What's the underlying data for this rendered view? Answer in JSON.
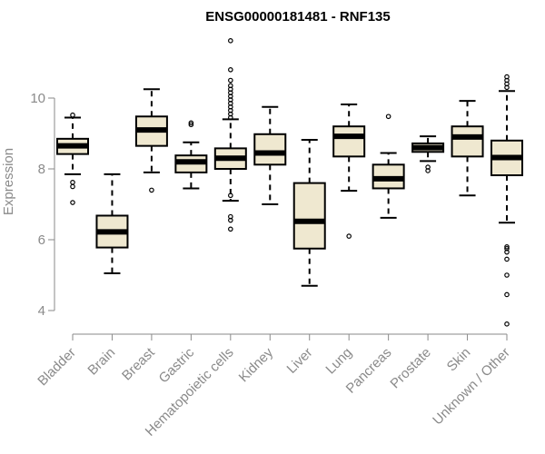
{
  "chart_data": {
    "type": "box",
    "title": "ENSG00000181481 - RNF135",
    "ylabel": "Expression",
    "ylim": [
      3.4,
      12.0
    ],
    "yticks": [
      4,
      6,
      8,
      10
    ],
    "grid": false,
    "colors": {
      "box_fill": "#efe8d0",
      "box_stroke": "#000000",
      "axis": "#8a8a8a"
    },
    "categories": [
      "Bladder",
      "Brain",
      "Breast",
      "Gastric",
      "Hematopoietic cells",
      "Kidney",
      "Liver",
      "Lung",
      "Pancreas",
      "Prostate",
      "Skin",
      "Unknown / Other"
    ],
    "boxes": [
      {
        "category": "Bladder",
        "whisker_low": 7.85,
        "q1": 8.42,
        "median": 8.65,
        "q3": 8.85,
        "whisker_high": 9.45,
        "outliers": [
          9.52,
          7.62,
          7.5,
          7.05
        ]
      },
      {
        "category": "Brain",
        "whisker_low": 5.05,
        "q1": 5.78,
        "median": 6.22,
        "q3": 6.68,
        "whisker_high": 7.85,
        "outliers": []
      },
      {
        "category": "Breast",
        "whisker_low": 7.9,
        "q1": 8.65,
        "median": 9.1,
        "q3": 9.48,
        "whisker_high": 10.25,
        "outliers": [
          7.4
        ]
      },
      {
        "category": "Gastric",
        "whisker_low": 7.45,
        "q1": 7.9,
        "median": 8.2,
        "q3": 8.38,
        "whisker_high": 8.75,
        "outliers": [
          9.3,
          9.25
        ]
      },
      {
        "category": "Hematopoietic cells",
        "whisker_low": 7.1,
        "q1": 8.0,
        "median": 8.3,
        "q3": 8.58,
        "whisker_high": 9.4,
        "outliers": [
          11.62,
          10.8,
          10.5,
          10.35,
          10.25,
          10.15,
          10.05,
          9.95,
          9.85,
          9.75,
          9.65,
          9.55,
          9.45,
          7.25,
          6.65,
          6.55,
          6.3
        ]
      },
      {
        "category": "Kidney",
        "whisker_low": 7.0,
        "q1": 8.12,
        "median": 8.45,
        "q3": 8.98,
        "whisker_high": 9.75,
        "outliers": []
      },
      {
        "category": "Liver",
        "whisker_low": 4.7,
        "q1": 5.75,
        "median": 6.52,
        "q3": 7.6,
        "whisker_high": 8.82,
        "outliers": []
      },
      {
        "category": "Lung",
        "whisker_low": 7.38,
        "q1": 8.35,
        "median": 8.92,
        "q3": 9.2,
        "whisker_high": 9.82,
        "outliers": [
          6.1
        ]
      },
      {
        "category": "Pancreas",
        "whisker_low": 6.62,
        "q1": 7.45,
        "median": 7.72,
        "q3": 8.12,
        "whisker_high": 8.45,
        "outliers": [
          9.48
        ]
      },
      {
        "category": "Prostate",
        "whisker_low": 8.22,
        "q1": 8.48,
        "median": 8.6,
        "q3": 8.72,
        "whisker_high": 8.92,
        "outliers": [
          8.05,
          7.95
        ]
      },
      {
        "category": "Skin",
        "whisker_low": 7.25,
        "q1": 8.35,
        "median": 8.9,
        "q3": 9.2,
        "whisker_high": 9.92,
        "outliers": []
      },
      {
        "category": "Unknown / Other",
        "whisker_low": 6.48,
        "q1": 7.82,
        "median": 8.32,
        "q3": 8.8,
        "whisker_high": 10.2,
        "outliers": [
          10.6,
          10.5,
          10.4,
          10.3,
          5.8,
          5.75,
          5.65,
          5.45,
          5.0,
          4.45,
          3.62
        ]
      }
    ]
  }
}
